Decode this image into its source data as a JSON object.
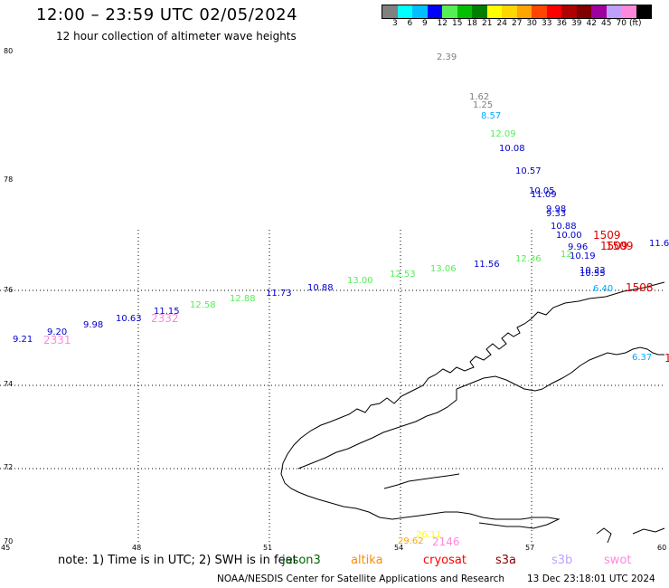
{
  "header": {
    "title": "12:00 – 23:59 UTC 02/05/2024",
    "subtitle": "12 hour collection of altimeter wave heights"
  },
  "colorbar": {
    "colors": [
      "#808080",
      "#00ffff",
      "#00bfff",
      "#0000ff",
      "#55ee55",
      "#00c000",
      "#008000",
      "#ffff00",
      "#ffd700",
      "#ffa500",
      "#ff4500",
      "#ff0000",
      "#b00000",
      "#800000",
      "#a000a0",
      "#c0a0ff",
      "#ff88dd",
      "#000000"
    ],
    "tick_labels": [
      "3",
      "6",
      "9",
      "12",
      "15",
      "18",
      "21",
      "24",
      "27",
      "30",
      "33",
      "36",
      "39",
      "42",
      "45",
      "70",
      "(ft)"
    ]
  },
  "axes": {
    "lat_labels": [
      "80",
      "78",
      "76",
      "74",
      "72",
      "70"
    ],
    "lon_labels": [
      "45",
      "48",
      "51",
      "54",
      "57",
      "60"
    ]
  },
  "wave_heights": [
    {
      "text": "2.39",
      "color": "#808080"
    },
    {
      "text": "1.62",
      "color": "#808080"
    },
    {
      "text": "1.25",
      "color": "#808080"
    },
    {
      "text": "8.57",
      "color": "#00aaff"
    },
    {
      "text": "12.09",
      "color": "#55ee55"
    },
    {
      "text": "10.08",
      "color": "#0000cc"
    },
    {
      "text": "10.57",
      "color": "#0000cc"
    },
    {
      "text": "10.05",
      "color": "#0000cc"
    },
    {
      "text": "11.09",
      "color": "#0000cc"
    },
    {
      "text": "9.98",
      "color": "#0000cc"
    },
    {
      "text": "9.33",
      "color": "#0000cc"
    },
    {
      "text": "10.88",
      "color": "#0000cc"
    },
    {
      "text": "10.00",
      "color": "#0000cc"
    },
    {
      "text": "9.96",
      "color": "#0000cc"
    },
    {
      "text": "10.19",
      "color": "#0000cc"
    },
    {
      "text": "12.",
      "color": "#55ee55"
    },
    {
      "text": "10.33",
      "color": "#0000cc"
    },
    {
      "text": "10.55",
      "color": "#0000cc"
    },
    {
      "text": "6.40",
      "color": "#00aaff"
    },
    {
      "text": "11.6",
      "color": "#0000cc"
    },
    {
      "text": "12.36",
      "color": "#55ee55"
    },
    {
      "text": "11.56",
      "color": "#0000cc"
    },
    {
      "text": "13.06",
      "color": "#55ee55"
    },
    {
      "text": "12.53",
      "color": "#55ee55"
    },
    {
      "text": "13.00",
      "color": "#55ee55"
    },
    {
      "text": "10.88",
      "color": "#0000cc"
    },
    {
      "text": "11.73",
      "color": "#0000cc"
    },
    {
      "text": "12.88",
      "color": "#55ee55"
    },
    {
      "text": "12.58",
      "color": "#55ee55"
    },
    {
      "text": "11.15",
      "color": "#0000cc"
    },
    {
      "text": "10.63",
      "color": "#0000cc"
    },
    {
      "text": "9.98",
      "color": "#0000cc"
    },
    {
      "text": "9.20",
      "color": "#0000cc"
    },
    {
      "text": "9.21",
      "color": "#0000cc"
    },
    {
      "text": "6.37",
      "color": "#00aaff"
    },
    {
      "text": "29.62",
      "color": "#ffa500"
    },
    {
      "text": "26.11",
      "color": "#ffff00"
    }
  ],
  "time_tags": [
    {
      "text": "1509",
      "color": "#dd0000"
    },
    {
      "text": "1509",
      "color": "#dd0000"
    },
    {
      "text": "1509",
      "color": "#dd0000"
    },
    {
      "text": "1508",
      "color": "#dd0000"
    },
    {
      "text": "1",
      "color": "#dd0000"
    },
    {
      "text": "2332",
      "color": "#ff88dd"
    },
    {
      "text": "2331",
      "color": "#ff88dd"
    },
    {
      "text": "2146",
      "color": "#ff88dd"
    }
  ],
  "footer": {
    "note": "note:  1) Time is in UTC;  2) SWH is in feet",
    "satellites": [
      {
        "name": "jason3",
        "color": "#006400"
      },
      {
        "name": "altika",
        "color": "#ff8c00"
      },
      {
        "name": "cryosat",
        "color": "#ff0000"
      },
      {
        "name": "s3a",
        "color": "#8b0000"
      },
      {
        "name": "s3b",
        "color": "#c0a0ff"
      },
      {
        "name": "swot",
        "color": "#ff88dd"
      }
    ],
    "credit": "NOAA/NESDIS Center for Satellite Applications and Research",
    "timestamp": "13 Dec 23:18:01 UTC 2024"
  }
}
